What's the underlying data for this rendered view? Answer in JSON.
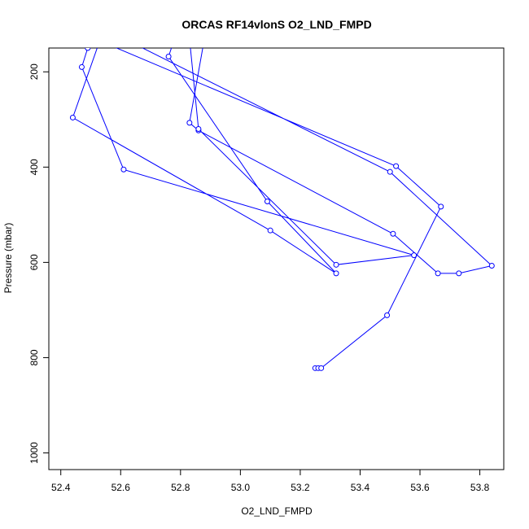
{
  "chart_data": {
    "type": "line",
    "title": "ORCAS RF14vlonS O2_LND_FMPD",
    "xlabel": "O2_LND_FMPD",
    "ylabel": "Pressure (mbar)",
    "xlim": [
      52.36,
      53.88
    ],
    "ylim": [
      1035,
      150
    ],
    "y_reversed": true,
    "grid": false,
    "series_color": "#0000ff",
    "x_ticks": [
      52.4,
      52.6,
      52.8,
      53.0,
      53.2,
      53.4,
      53.6,
      53.8
    ],
    "x_tick_labels": [
      "52.4",
      "52.6",
      "52.8",
      "53.0",
      "53.2",
      "53.4",
      "53.6",
      "53.8"
    ],
    "y_ticks": [
      200,
      400,
      600,
      800,
      1000
    ],
    "y_tick_labels": [
      "200",
      "400",
      "600",
      "800",
      "1000"
    ],
    "series": [
      {
        "points": [
          [
            53.25,
            822
          ],
          [
            53.26,
            822
          ],
          [
            53.27,
            822
          ],
          [
            53.49,
            711
          ],
          [
            53.67,
            483
          ],
          [
            53.52,
            398
          ],
          [
            52.53,
            135
          ],
          [
            52.44,
            296
          ],
          [
            53.1,
            533
          ],
          [
            53.32,
            623
          ],
          [
            53.09,
            472
          ],
          [
            52.76,
            168
          ],
          [
            52.78,
            130
          ],
          [
            52.88,
            130
          ],
          [
            52.83,
            307
          ],
          [
            52.86,
            323
          ],
          [
            53.51,
            540
          ],
          [
            53.66,
            623
          ],
          [
            53.73,
            623
          ],
          [
            53.84,
            607
          ],
          [
            53.5,
            410
          ],
          [
            52.61,
            130
          ],
          [
            52.49,
            150
          ],
          [
            52.47,
            190
          ],
          [
            52.61,
            405
          ],
          [
            53.58,
            585
          ],
          [
            53.32,
            605
          ],
          [
            52.86,
            320
          ],
          [
            52.83,
            130
          ]
        ]
      }
    ]
  }
}
